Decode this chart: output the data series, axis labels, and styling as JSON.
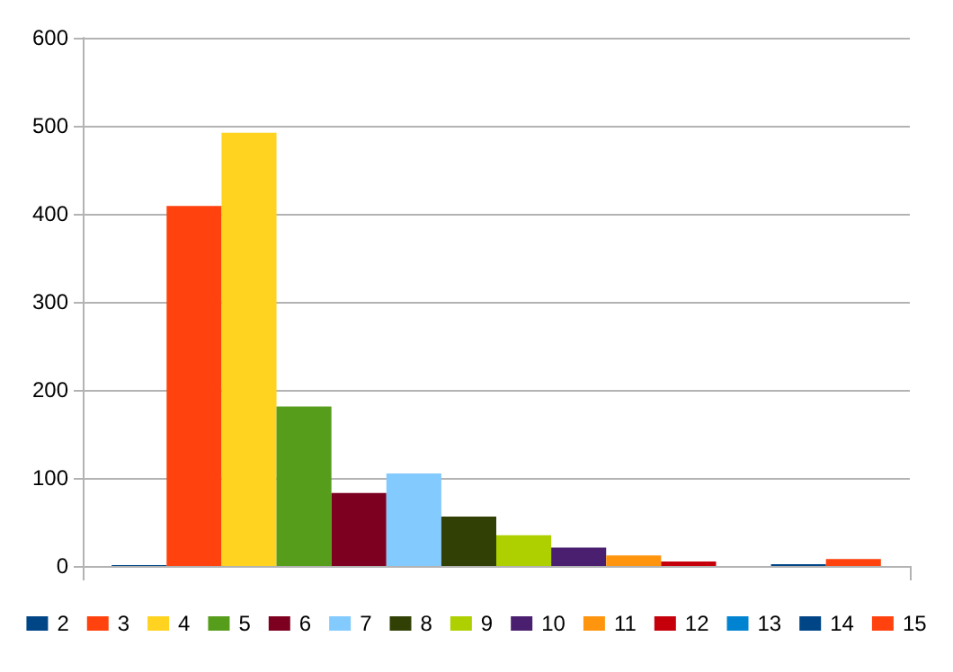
{
  "chart_data": {
    "type": "bar",
    "categories": [
      null
    ],
    "ylim": [
      0,
      600
    ],
    "yticks": [
      0,
      100,
      200,
      300,
      400,
      500,
      600
    ],
    "grid": "y",
    "legend": "bottom",
    "tick_labels": "y",
    "series": [
      {
        "name": "2",
        "color": "#004586",
        "values": [
          1
        ]
      },
      {
        "name": "3",
        "color": "#ff420e",
        "values": [
          409
        ]
      },
      {
        "name": "4",
        "color": "#ffd320",
        "values": [
          492
        ]
      },
      {
        "name": "5",
        "color": "#579d1c",
        "values": [
          181
        ]
      },
      {
        "name": "6",
        "color": "#7e0021",
        "values": [
          83
        ]
      },
      {
        "name": "7",
        "color": "#83caff",
        "values": [
          105
        ]
      },
      {
        "name": "8",
        "color": "#314004",
        "values": [
          56
        ]
      },
      {
        "name": "9",
        "color": "#aecf00",
        "values": [
          35
        ]
      },
      {
        "name": "10",
        "color": "#4b1f6f",
        "values": [
          21
        ]
      },
      {
        "name": "11",
        "color": "#ff950e",
        "values": [
          12
        ]
      },
      {
        "name": "12",
        "color": "#c5000b",
        "values": [
          5
        ]
      },
      {
        "name": "13",
        "color": "#0084d1",
        "values": [
          0
        ]
      },
      {
        "name": "14",
        "color": "#004586",
        "values": [
          2
        ]
      },
      {
        "name": "15",
        "color": "#ff420e",
        "values": [
          8
        ]
      }
    ]
  }
}
